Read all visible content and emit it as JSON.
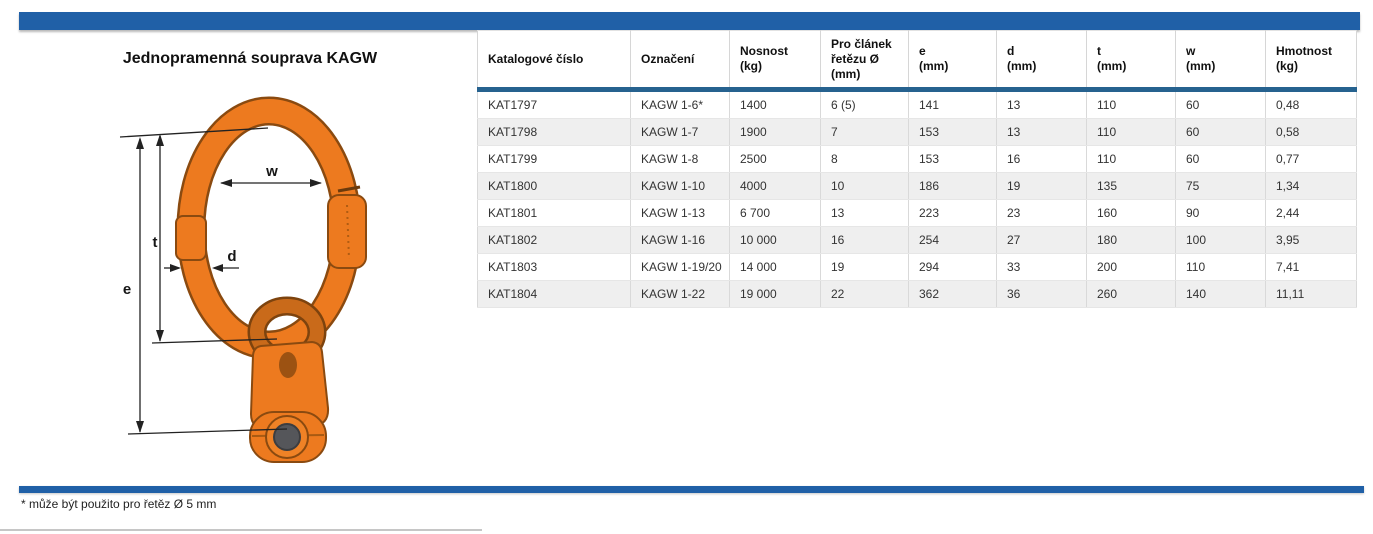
{
  "page": {
    "title": "Jednopramenná souprava KAGW",
    "footnote": "* může být použito pro řetěz Ø 5 mm"
  },
  "colors": {
    "bar-blue": "#2060a7",
    "accent-blue": "#26628f",
    "orange": "#ed7a1f",
    "orange-dark": "#8a4a10",
    "row-alt": "#efefef",
    "pin": "#55565a",
    "text": "#2b2b2b"
  },
  "diagram": {
    "name": "master-link-with-clevis-illustration",
    "labels": {
      "e": "e",
      "t": "t",
      "w": "w",
      "d": "d"
    }
  },
  "table": {
    "headers": [
      {
        "lines": [
          "Katalogové číslo"
        ]
      },
      {
        "lines": [
          "Označení"
        ]
      },
      {
        "lines": [
          "Nosnost",
          "(kg)"
        ]
      },
      {
        "lines": [
          "Pro článek",
          "řetězu Ø",
          "(mm)"
        ]
      },
      {
        "lines": [
          "e",
          "(mm)"
        ]
      },
      {
        "lines": [
          "d",
          "(mm)"
        ]
      },
      {
        "lines": [
          "t",
          "(mm)"
        ]
      },
      {
        "lines": [
          "w",
          "(mm)"
        ]
      },
      {
        "lines": [
          "Hmotnost",
          "(kg)"
        ]
      }
    ],
    "rows": [
      [
        "KAT1797",
        "KAGW 1-6*",
        "1400",
        "6 (5)",
        "141",
        "13",
        "110",
        "60",
        "0,48"
      ],
      [
        "KAT1798",
        "KAGW 1-7",
        "1900",
        "7",
        "153",
        "13",
        "110",
        "60",
        "0,58"
      ],
      [
        "KAT1799",
        "KAGW 1-8",
        "2500",
        "8",
        "153",
        "16",
        "110",
        "60",
        "0,77"
      ],
      [
        "KAT1800",
        "KAGW 1-10",
        "4000",
        "10",
        "186",
        "19",
        "135",
        "75",
        "1,34"
      ],
      [
        "KAT1801",
        "KAGW 1-13",
        "6 700",
        "13",
        "223",
        "23",
        "160",
        "90",
        "2,44"
      ],
      [
        "KAT1802",
        "KAGW 1-16",
        "10 000",
        "16",
        "254",
        "27",
        "180",
        "100",
        "3,95"
      ],
      [
        "KAT1803",
        "KAGW 1-19/20",
        "14 000",
        "19",
        "294",
        "33",
        "200",
        "110",
        "7,41"
      ],
      [
        "KAT1804",
        "KAGW 1-22",
        "19 000",
        "22",
        "362",
        "36",
        "260",
        "140",
        "11,11"
      ]
    ]
  }
}
